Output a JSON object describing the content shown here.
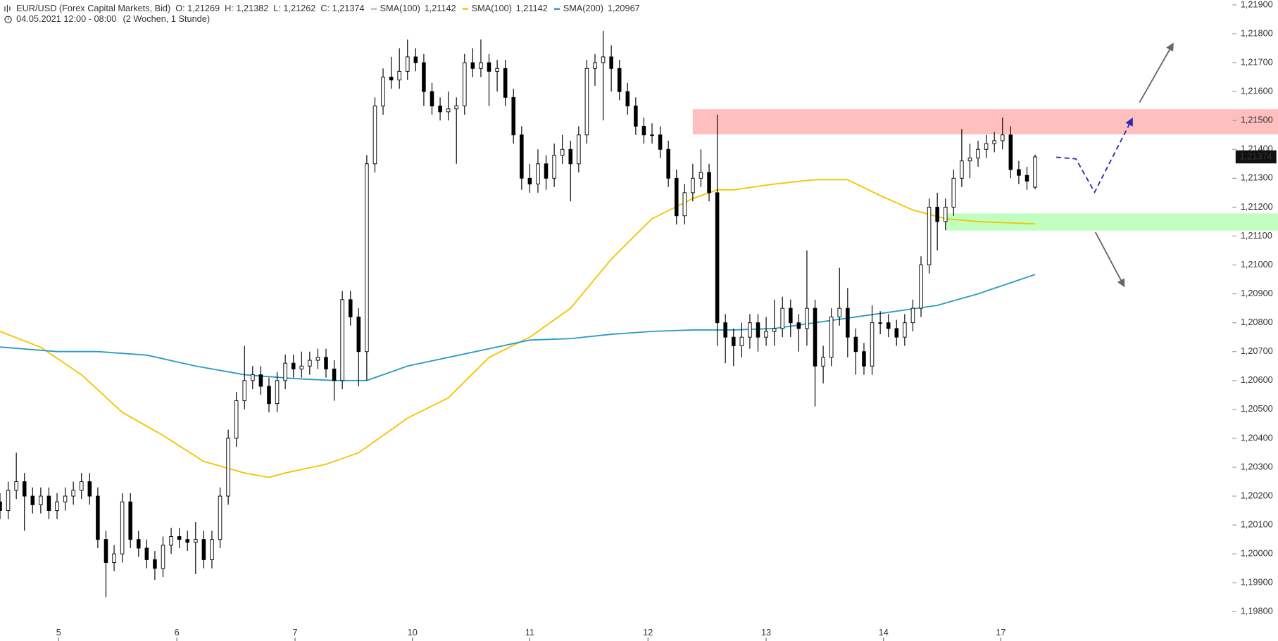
{
  "chart_data": {
    "type": "candlestick",
    "title": "EUR/USD (Forex Capital Markets, Bid)",
    "ohlc_labels": [
      "O: 1,21269",
      "H: 1,21382",
      "L: 1,21262",
      "C: 1,21374"
    ],
    "subtitle": "04.05.2021 12:00 - 08:00",
    "period": "(2 Wochen, 1 Stunde)",
    "up_color": "#ffffff",
    "down_color": "#000000",
    "ylim": [
      1.198,
      1.219
    ],
    "xlim": [
      0,
      150.5
    ],
    "yticks": [
      {
        "value": 1.219,
        "label": "1,21900"
      },
      {
        "value": 1.218,
        "label": "1,21800"
      },
      {
        "value": 1.217,
        "label": "1,21700"
      },
      {
        "value": 1.216,
        "label": "1,21600"
      },
      {
        "value": 1.215,
        "label": "1,21500"
      },
      {
        "value": 1.214,
        "label": "1,21400"
      },
      {
        "value": 1.213,
        "label": "1,21300"
      },
      {
        "value": 1.212,
        "label": "1,21200"
      },
      {
        "value": 1.211,
        "label": "1,21100"
      },
      {
        "value": 1.21,
        "label": "1,21000"
      },
      {
        "value": 1.209,
        "label": "1,20900"
      },
      {
        "value": 1.208,
        "label": "1,20800"
      },
      {
        "value": 1.207,
        "label": "1,20700"
      },
      {
        "value": 1.206,
        "label": "1,20600"
      },
      {
        "value": 1.205,
        "label": "1,20500"
      },
      {
        "value": 1.204,
        "label": "1,20400"
      },
      {
        "value": 1.203,
        "label": "1,20300"
      },
      {
        "value": 1.202,
        "label": "1,20200"
      },
      {
        "value": 1.201,
        "label": "1,20100"
      },
      {
        "value": 1.2,
        "label": "1,20000"
      },
      {
        "value": 1.199,
        "label": "1,19900"
      },
      {
        "value": 1.198,
        "label": "1,19800"
      }
    ],
    "xticks": [
      {
        "value": 7.2,
        "label": "5"
      },
      {
        "value": 21.7,
        "label": "6"
      },
      {
        "value": 36.2,
        "label": "7"
      },
      {
        "value": 50.6,
        "label": "10"
      },
      {
        "value": 65,
        "label": "11"
      },
      {
        "value": 79.5,
        "label": "12"
      },
      {
        "value": 94,
        "label": "13"
      },
      {
        "value": 108.4,
        "label": "14"
      },
      {
        "value": 122.8,
        "label": "17"
      }
    ],
    "last_price": {
      "value": 1.21374,
      "label": "1,21374"
    },
    "zones": [
      {
        "from": 1.21452,
        "to": 1.21539,
        "start": 85,
        "color": "#ffbfbf"
      },
      {
        "from": 1.21119,
        "to": 1.21178,
        "start": 116,
        "color": "#c0ffc0"
      }
    ],
    "series": [
      {
        "name": "SMA(100)",
        "color": "#bbbbbb",
        "value_label": "1,21142",
        "visible": false
      },
      {
        "name": "SMA(100)",
        "color": "#f5c400",
        "value_label": "1,21142",
        "x": [
          0,
          5,
          10,
          15,
          20,
          25,
          30,
          33,
          35,
          40,
          44,
          47,
          50,
          55,
          60,
          65,
          70,
          75,
          80,
          85,
          88,
          90,
          95,
          100,
          104,
          108,
          112,
          116,
          120,
          127
        ],
        "values": [
          1.2077,
          1.20715,
          1.2062,
          1.2049,
          1.2041,
          1.2032,
          1.2028,
          1.20265,
          1.2028,
          1.2031,
          1.2035,
          1.2041,
          1.2047,
          1.2054,
          1.2068,
          1.2075,
          1.2085,
          1.2102,
          1.2116,
          1.2123,
          1.2126,
          1.2126,
          1.2128,
          1.21295,
          1.21295,
          1.2124,
          1.2119,
          1.2116,
          1.2115,
          1.21142
        ]
      },
      {
        "name": "SMA(200)",
        "color": "#2a9ac8",
        "value_label": "1,20967",
        "x": [
          0,
          7,
          12,
          18,
          24,
          30,
          36,
          41,
          45,
          50,
          55,
          60,
          65,
          70,
          75,
          80,
          85,
          90,
          95,
          100,
          105,
          110,
          115,
          120,
          127
        ],
        "values": [
          1.20716,
          1.207,
          1.207,
          1.20688,
          1.2065,
          1.2062,
          1.20607,
          1.206,
          1.206,
          1.2065,
          1.2068,
          1.2071,
          1.2074,
          1.20745,
          1.2076,
          1.2077,
          1.20775,
          1.20775,
          1.2078,
          1.208,
          1.2082,
          1.2084,
          1.2086,
          1.209,
          1.20967
        ]
      }
    ],
    "candles": [
      [
        1.2018,
        1.2021,
        1.2012,
        1.2015
      ],
      [
        1.2015,
        1.2025,
        1.2012,
        1.2022
      ],
      [
        1.2022,
        1.2035,
        1.2019,
        1.2025
      ],
      [
        1.2025,
        1.2028,
        1.2008,
        1.202
      ],
      [
        1.202,
        1.2023,
        1.2014,
        1.2017
      ],
      [
        1.2017,
        1.2023,
        1.2014,
        1.202
      ],
      [
        1.202,
        1.2023,
        1.2012,
        1.2015
      ],
      [
        1.2015,
        1.2021,
        1.2012,
        1.2018
      ],
      [
        1.2018,
        1.2023,
        1.2015,
        1.202
      ],
      [
        1.202,
        1.2025,
        1.2017,
        1.2022
      ],
      [
        1.2022,
        1.2028,
        1.2019,
        1.2025
      ],
      [
        1.2025,
        1.2028,
        1.2017,
        1.202
      ],
      [
        1.202,
        1.2023,
        1.2002,
        1.2005
      ],
      [
        1.2005,
        1.2008,
        1.1985,
        1.1997
      ],
      [
        1.1997,
        1.2003,
        1.1994,
        1.2
      ],
      [
        1.2,
        1.2021,
        1.1997,
        1.2018
      ],
      [
        1.2018,
        1.2021,
        1.2002,
        1.2005
      ],
      [
        1.2005,
        1.2008,
        1.1999,
        1.2002
      ],
      [
        1.2002,
        1.2005,
        1.1995,
        1.1998
      ],
      [
        1.1998,
        1.2001,
        1.1991,
        1.1995
      ],
      [
        1.1995,
        1.2006,
        1.1992,
        1.2003
      ],
      [
        1.2003,
        1.2009,
        1.2,
        1.2006
      ],
      [
        1.2006,
        1.2009,
        1.2002,
        1.2005
      ],
      [
        1.2005,
        1.2008,
        1.2001,
        1.2004
      ],
      [
        1.2004,
        1.2011,
        1.1993,
        1.2005
      ],
      [
        1.2005,
        1.2008,
        1.1995,
        1.1998
      ],
      [
        1.1998,
        1.2008,
        1.1995,
        1.2005
      ],
      [
        1.2005,
        1.2023,
        1.2002,
        1.202
      ],
      [
        1.202,
        1.2043,
        1.2017,
        1.204
      ],
      [
        1.204,
        1.2056,
        1.2037,
        1.2053
      ],
      [
        1.2053,
        1.2072,
        1.205,
        1.206
      ],
      [
        1.206,
        1.2065,
        1.2057,
        1.2062
      ],
      [
        1.2062,
        1.2065,
        1.2055,
        1.2058
      ],
      [
        1.2058,
        1.2061,
        1.2049,
        1.2052
      ],
      [
        1.2052,
        1.2063,
        1.2049,
        1.206
      ],
      [
        1.206,
        1.2069,
        1.2057,
        1.2066
      ],
      [
        1.2066,
        1.2069,
        1.2061,
        1.2064
      ],
      [
        1.2064,
        1.207,
        1.2061,
        1.2065
      ],
      [
        1.2065,
        1.207,
        1.2062,
        1.2067
      ],
      [
        1.2067,
        1.2071,
        1.2064,
        1.2068
      ],
      [
        1.2068,
        1.2071,
        1.2061,
        1.2064
      ],
      [
        1.2064,
        1.2067,
        1.2053,
        1.206
      ],
      [
        1.206,
        1.2091,
        1.2057,
        1.2088
      ],
      [
        1.2088,
        1.2091,
        1.2079,
        1.2082
      ],
      [
        1.2082,
        1.2085,
        1.2058,
        1.207
      ],
      [
        1.207,
        1.2138,
        1.206,
        1.2135
      ],
      [
        1.2135,
        1.2158,
        1.2132,
        1.2155
      ],
      [
        1.2155,
        1.2168,
        1.2152,
        1.2165
      ],
      [
        1.2165,
        1.2172,
        1.2161,
        1.2164
      ],
      [
        1.2164,
        1.2175,
        1.2161,
        1.2167
      ],
      [
        1.2167,
        1.2178,
        1.2164,
        1.2172
      ],
      [
        1.2172,
        1.2175,
        1.2167,
        1.217
      ],
      [
        1.217,
        1.2173,
        1.2155,
        1.216
      ],
      [
        1.216,
        1.2163,
        1.2152,
        1.2155
      ],
      [
        1.2155,
        1.2158,
        1.215,
        1.2153
      ],
      [
        1.2153,
        1.216,
        1.215,
        1.2154
      ],
      [
        1.2154,
        1.2158,
        1.2135,
        1.2155
      ],
      [
        1.2155,
        1.2173,
        1.2152,
        1.217
      ],
      [
        1.217,
        1.2175,
        1.2165,
        1.2168
      ],
      [
        1.2168,
        1.2178,
        1.2165,
        1.217
      ],
      [
        1.217,
        1.2173,
        1.2155,
        1.2167
      ],
      [
        1.2167,
        1.2171,
        1.216,
        1.2168
      ],
      [
        1.2168,
        1.2171,
        1.2155,
        1.2158
      ],
      [
        1.2158,
        1.2161,
        1.2142,
        1.2145
      ],
      [
        1.2145,
        1.2148,
        1.2126,
        1.213
      ],
      [
        1.213,
        1.2135,
        1.2125,
        1.2128
      ],
      [
        1.2128,
        1.214,
        1.2125,
        1.2135
      ],
      [
        1.2135,
        1.2138,
        1.2126,
        1.213
      ],
      [
        1.213,
        1.2142,
        1.2127,
        1.2138
      ],
      [
        1.2138,
        1.2145,
        1.2135,
        1.214
      ],
      [
        1.214,
        1.2143,
        1.2122,
        1.2135
      ],
      [
        1.2135,
        1.2148,
        1.2132,
        1.2145
      ],
      [
        1.2145,
        1.2171,
        1.2142,
        1.2168
      ],
      [
        1.2168,
        1.2173,
        1.2162,
        1.217
      ],
      [
        1.217,
        1.2181,
        1.215,
        1.2172
      ],
      [
        1.2172,
        1.2176,
        1.216,
        1.2168
      ],
      [
        1.2168,
        1.2171,
        1.2157,
        1.216
      ],
      [
        1.216,
        1.2163,
        1.2152,
        1.2155
      ],
      [
        1.2155,
        1.2158,
        1.2145,
        1.2148
      ],
      [
        1.2148,
        1.2151,
        1.2142,
        1.2145
      ],
      [
        1.2145,
        1.2149,
        1.2142,
        1.2145
      ],
      [
        1.2145,
        1.2148,
        1.2137,
        1.214
      ],
      [
        1.214,
        1.2143,
        1.2127,
        1.213
      ],
      [
        1.213,
        1.2133,
        1.2114,
        1.2117
      ],
      [
        1.2117,
        1.2128,
        1.2114,
        1.2125
      ],
      [
        1.2125,
        1.2135,
        1.2122,
        1.213
      ],
      [
        1.213,
        1.214,
        1.2127,
        1.2132
      ],
      [
        1.2132,
        1.2135,
        1.2122,
        1.2125
      ],
      [
        1.2125,
        1.2152,
        1.2072,
        1.208
      ],
      [
        1.208,
        1.2083,
        1.2066,
        1.2075
      ],
      [
        1.2075,
        1.2078,
        1.2065,
        1.2072
      ],
      [
        1.2072,
        1.208,
        1.2068,
        1.2075
      ],
      [
        1.2075,
        1.2083,
        1.2071,
        1.208
      ],
      [
        1.208,
        1.2083,
        1.207,
        1.2075
      ],
      [
        1.2075,
        1.2082,
        1.2072,
        1.2077
      ],
      [
        1.2077,
        1.2088,
        1.2072,
        1.2078
      ],
      [
        1.2078,
        1.2089,
        1.2075,
        1.2085
      ],
      [
        1.2085,
        1.2088,
        1.2075,
        1.208
      ],
      [
        1.208,
        1.2083,
        1.207,
        1.2078
      ],
      [
        1.2078,
        1.2105,
        1.2072,
        1.2085
      ],
      [
        1.2085,
        1.2088,
        1.2051,
        1.2065
      ],
      [
        1.2065,
        1.2072,
        1.2059,
        1.2068
      ],
      [
        1.2068,
        1.2085,
        1.2065,
        1.2082
      ],
      [
        1.2082,
        1.2099,
        1.2079,
        1.2085
      ],
      [
        1.2085,
        1.2092,
        1.2068,
        1.2075
      ],
      [
        1.2075,
        1.2078,
        1.2062,
        1.207
      ],
      [
        1.207,
        1.2073,
        1.2062,
        1.2065
      ],
      [
        1.2065,
        1.2086,
        1.2062,
        1.208
      ],
      [
        1.208,
        1.2084,
        1.2076,
        1.208
      ],
      [
        1.208,
        1.2083,
        1.2075,
        1.2078
      ],
      [
        1.2078,
        1.2081,
        1.2072,
        1.2075
      ],
      [
        1.2075,
        1.2083,
        1.2072,
        1.208
      ],
      [
        1.208,
        1.2088,
        1.2077,
        1.2085
      ],
      [
        1.2085,
        1.2103,
        1.2082,
        1.21
      ],
      [
        1.21,
        1.2123,
        1.2097,
        1.212
      ],
      [
        1.212,
        1.2125,
        1.2105,
        1.2115
      ],
      [
        1.2115,
        1.2123,
        1.2112,
        1.212
      ],
      [
        1.212,
        1.2133,
        1.2117,
        1.213
      ],
      [
        1.213,
        1.2147,
        1.2127,
        1.2136
      ],
      [
        1.2136,
        1.2142,
        1.213,
        1.2137
      ],
      [
        1.2137,
        1.2143,
        1.2134,
        1.214
      ],
      [
        1.214,
        1.2145,
        1.2137,
        1.2142
      ],
      [
        1.2142,
        1.2146,
        1.2139,
        1.2143
      ],
      [
        1.2143,
        1.2151,
        1.214,
        1.2145
      ],
      [
        1.2145,
        1.2148,
        1.213,
        1.2133
      ],
      [
        1.2133,
        1.2136,
        1.2128,
        1.2131
      ],
      [
        1.2131,
        1.2134,
        1.2126,
        1.2129
      ],
      [
        1.21269,
        1.21382,
        1.21262,
        1.21374
      ]
    ]
  }
}
